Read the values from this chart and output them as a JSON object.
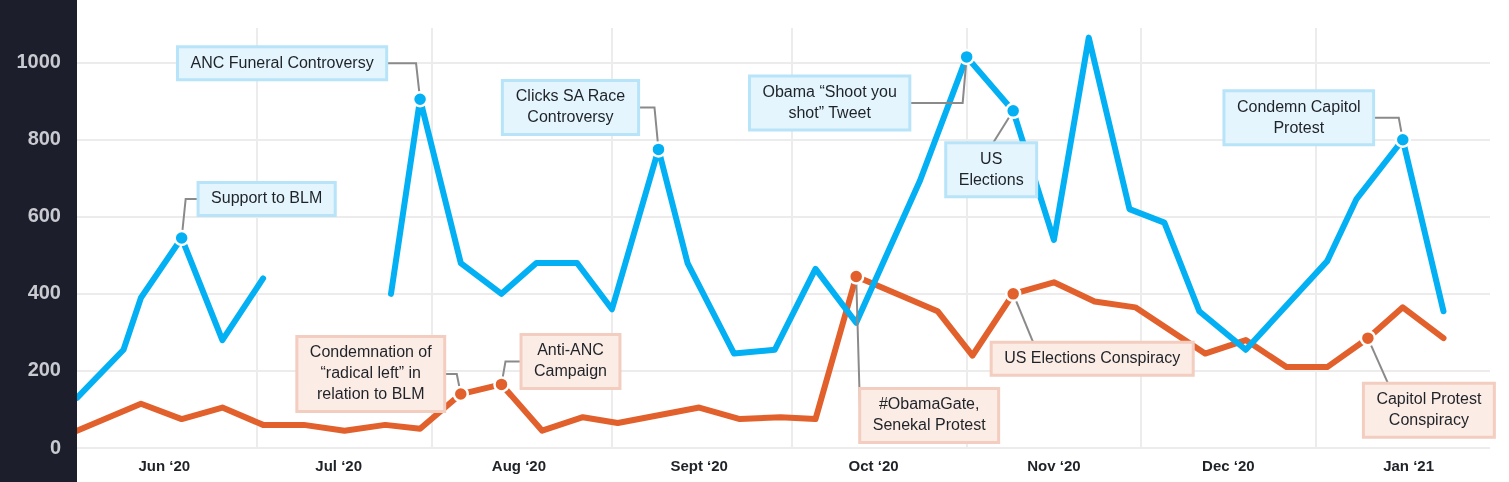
{
  "chart_data": {
    "type": "line",
    "x": [
      "2020-05-17",
      "2020-05-25",
      "2020-05-28",
      "2020-06-04",
      "2020-06-11",
      "2020-06-18",
      "2020-06-25",
      "2020-07-03",
      "2020-07-10",
      "2020-07-15",
      "2020-07-22",
      "2020-07-29",
      "2020-08-04",
      "2020-08-11",
      "2020-08-17",
      "2020-08-25",
      "2020-08-30",
      "2020-09-07",
      "2020-09-14",
      "2020-09-21",
      "2020-09-28",
      "2020-10-09",
      "2020-10-17",
      "2020-10-25",
      "2020-11-01",
      "2020-11-07",
      "2020-11-14",
      "2020-11-20",
      "2020-11-26",
      "2020-12-04",
      "2020-12-18",
      "2020-12-23",
      "2020-12-31",
      "2021-01-07"
    ],
    "series": [
      {
        "color": "#03b0f4",
        "values": [
          130,
          255,
          390,
          545,
          280,
          440,
          null,
          null,
          400,
          905,
          480,
          400,
          480,
          480,
          360,
          775,
          480,
          245,
          255,
          465,
          325,
          695,
          1015,
          875,
          540,
          1065,
          620,
          585,
          355,
          255,
          485,
          645,
          800,
          355
        ]
      },
      {
        "color": "#e2602c",
        "x": [
          "2020-05-17",
          "2020-05-28",
          "2020-06-04",
          "2020-06-11",
          "2020-06-18",
          "2020-06-25",
          "2020-07-02",
          "2020-07-09",
          "2020-07-15",
          "2020-07-22",
          "2020-07-29",
          "2020-08-05",
          "2020-08-12",
          "2020-08-18",
          "2020-09-01",
          "2020-09-08",
          "2020-09-15",
          "2020-09-21",
          "2020-09-28",
          "2020-10-12",
          "2020-10-18",
          "2020-10-25",
          "2020-11-01",
          "2020-11-08",
          "2020-11-15",
          "2020-11-27",
          "2020-12-04",
          "2020-12-11",
          "2020-12-18",
          "2020-12-25",
          "2020-12-31",
          "2021-01-07"
        ],
        "values": [
          45,
          115,
          75,
          105,
          60,
          60,
          45,
          60,
          50,
          140,
          165,
          45,
          80,
          65,
          105,
          75,
          80,
          75,
          445,
          355,
          240,
          400,
          430,
          380,
          365,
          245,
          280,
          210,
          210,
          285,
          365,
          285
        ]
      }
    ],
    "xlim": [
      "2020-05-17",
      "2021-01-15"
    ],
    "xticks": [
      {
        "value": "2020-06-01",
        "label": "Jun ‘20"
      },
      {
        "value": "2020-06-17",
        "label": null
      },
      {
        "value": "2020-07-01",
        "label": "Jul ‘20"
      },
      {
        "value": "2020-07-17",
        "label": null
      },
      {
        "value": "2020-08-01",
        "label": "Aug ‘20"
      },
      {
        "value": "2020-08-17",
        "label": null
      },
      {
        "value": "2020-09-01",
        "label": "Sept ‘20"
      },
      {
        "value": "2020-09-17",
        "label": null
      },
      {
        "value": "2020-10-01",
        "label": "Oct ‘20"
      },
      {
        "value": "2020-10-17",
        "label": null
      },
      {
        "value": "2020-11-01",
        "label": "Nov ‘20"
      },
      {
        "value": "2020-11-16",
        "label": null
      },
      {
        "value": "2020-12-01",
        "label": "Dec ‘20"
      },
      {
        "value": "2020-12-16",
        "label": null
      },
      {
        "value": "2021-01-01",
        "label": "Jan ‘21"
      }
    ],
    "ylim": [
      0,
      1090
    ],
    "yticks": [
      0,
      200,
      400,
      600,
      800,
      1000
    ],
    "grid": true,
    "line_style": "solid",
    "annotations": [
      {
        "text": "Support to BLM",
        "x": "2020-06-04",
        "y": 545
      },
      {
        "text": "ANC Funeral Controversy",
        "x": "2020-07-15",
        "y": 905
      },
      {
        "text": "Clicks SA Race Controversy",
        "x": "2020-08-25",
        "y": 775
      },
      {
        "text": "Obama “Shoot you shot” Tweet",
        "x": "2020-10-17",
        "y": 1015
      },
      {
        "text": "US Elections",
        "x": "2020-10-25",
        "y": 875
      },
      {
        "text": "Condemn Capitol Protest",
        "x": "2020-12-31",
        "y": 800
      },
      {
        "text": "Condemnation of “radical left” in relation to BLM",
        "x": "2020-07-22",
        "y": 140
      },
      {
        "text": "Anti-ANC Campaign",
        "x": "2020-07-29",
        "y": 165
      },
      {
        "text": "#ObamaGate, Senekal Protest",
        "x": "2020-09-28",
        "y": 445
      },
      {
        "text": "US Elections Conspiracy",
        "x": "2020-10-25",
        "y": 400
      },
      {
        "text": "Capitol Protest Conspiracy",
        "x": "2020-12-25",
        "y": 285
      }
    ]
  }
}
